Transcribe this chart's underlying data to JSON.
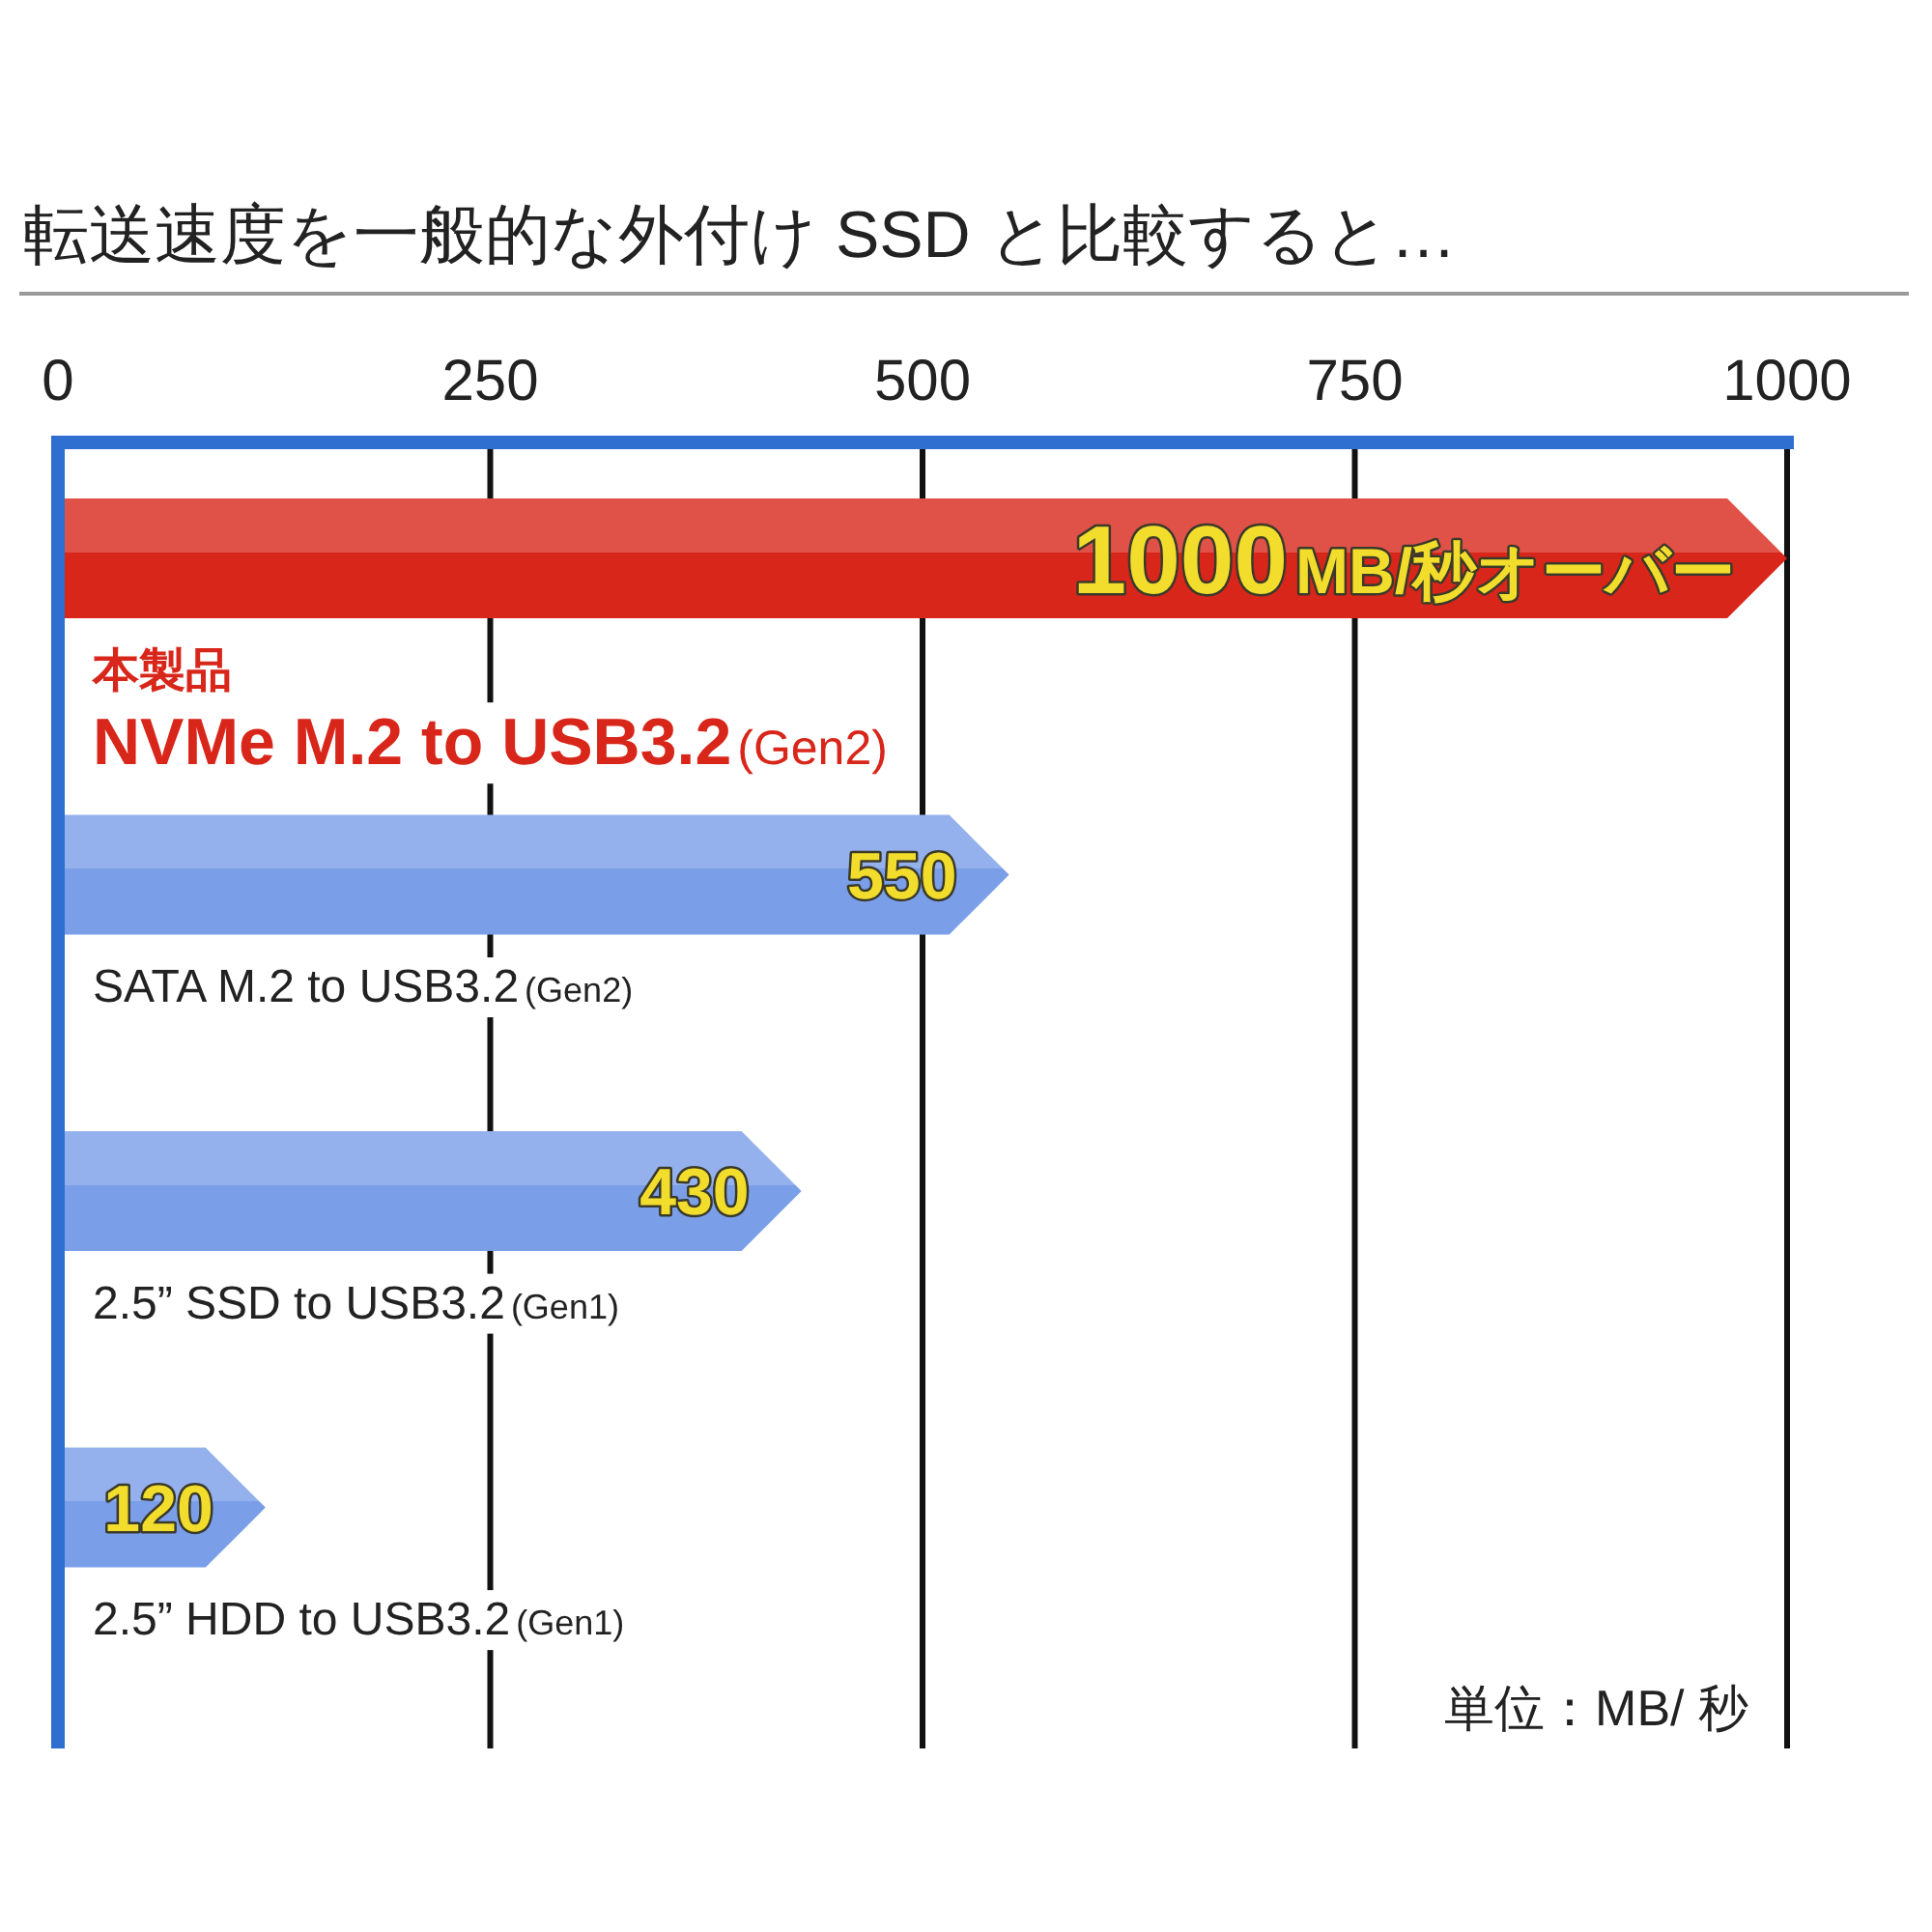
{
  "chart_data": {
    "type": "bar",
    "orientation": "horizontal",
    "title": "転送速度を一般的な外付け SSD と比較すると…",
    "categories": [
      "本製品\nNVMe M.2 to USB3.2(Gen2)",
      "SATA M.2 to USB3.2(Gen2)",
      "2.5” SSD to USB3.2(Gen1)",
      "2.5” HDD to USB3.2(Gen1)"
    ],
    "values": [
      1000,
      550,
      430,
      120
    ],
    "colors": [
      "#d8261a",
      "#7a9ee8",
      "#7a9ee8",
      "#7a9ee8"
    ],
    "value_labels": [
      "1000MB/秒オーバー",
      "550",
      "430",
      "120"
    ],
    "xlim": [
      0,
      1000
    ],
    "xticks": [
      0,
      250,
      500,
      750,
      1000
    ],
    "grid": "x",
    "annotations": [
      "単位：MB/ 秒"
    ]
  }
}
